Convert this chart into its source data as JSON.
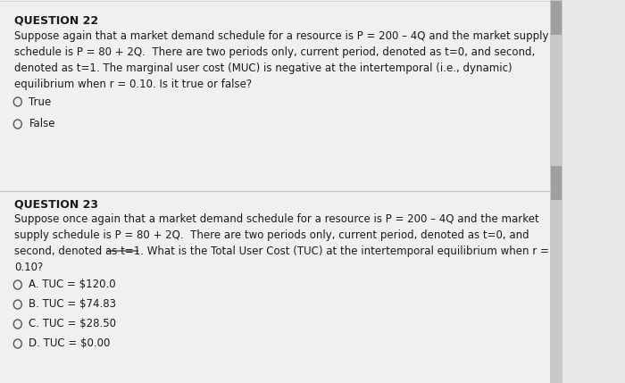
{
  "bg_color": "#e8e8e8",
  "section1_bg": "#f0f0f0",
  "section2_bg": "#f0f0f0",
  "divider_color": "#cccccc",
  "q22_title": "QUESTION 22",
  "q22_body": "Suppose again that a market demand schedule for a resource is P = 200 – 4Q and the market supply\nschedule is P = 80 + 2Q.  There are two periods only, current period, denoted as t=0, and second,\ndenoted as t=1. The marginal user cost (MUC) is negative at the intertemporal (i.e., dynamic)\nequilibrium when r = 0.10. Is it true or false?",
  "q22_options": [
    "True",
    "False"
  ],
  "q23_title": "QUESTION 23",
  "q23_body": "Suppose once again that a market demand schedule for a resource is P = 200 – 4Q and the market\nsupply schedule is P = 80 + 2Q.  There are two periods only, current period, denoted as t=0, and\nsecond, denoted as t=1. What is the Total User Cost (TUC) at the intertemporal equilibrium when r =\n0.10?",
  "q23_options": [
    "A. TUC = $120.0",
    "B. TUC = $74.83",
    "C. TUC = $28.50",
    "D. TUC = $0.00"
  ],
  "title_fontsize": 9,
  "body_fontsize": 8.5,
  "option_fontsize": 8.5,
  "text_color": "#1a1a1a",
  "title_color": "#1a1a1a"
}
